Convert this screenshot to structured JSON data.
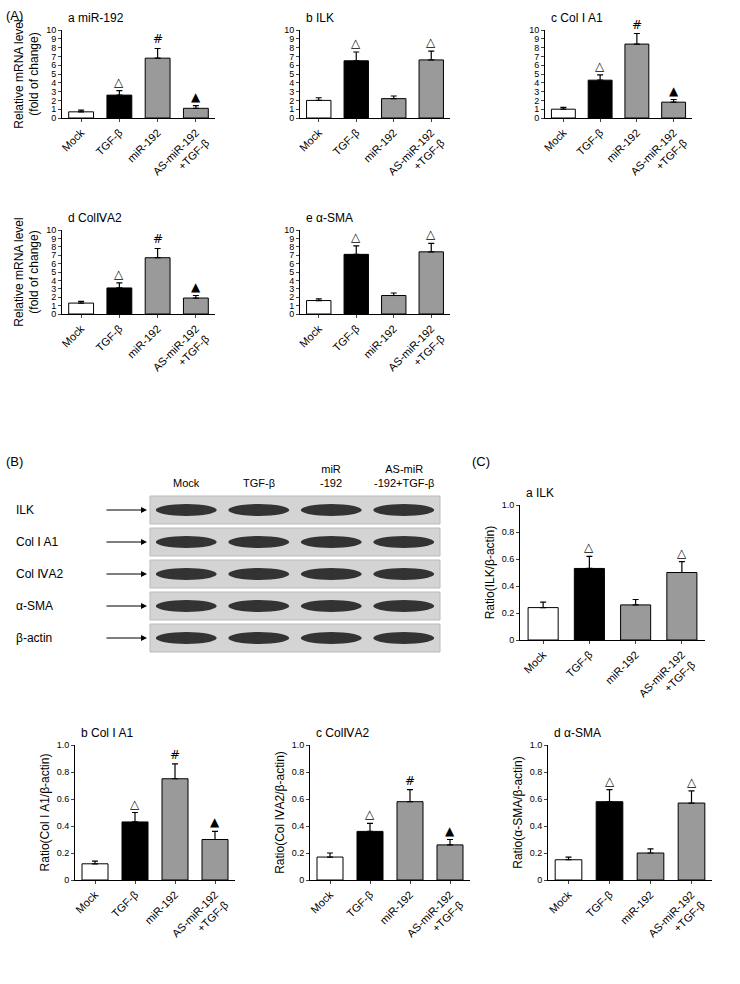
{
  "chart_data": [
    {
      "type": "bar",
      "panel": "A",
      "title": "a miR-192",
      "y_label": "Relative mRNA level\n(fold of change)",
      "categories": [
        "Mock",
        "TGF-β",
        "miR-192",
        "AS-miR-192\n+TGF-β"
      ],
      "values": [
        0.7,
        2.6,
        6.8,
        1.1
      ],
      "errors": [
        0.2,
        0.5,
        1.1,
        0.3
      ],
      "annotations": [
        null,
        "△",
        "#",
        "▲"
      ],
      "colors": [
        "#ffffff",
        "#000000",
        "#9a9a9a",
        "#9a9a9a"
      ],
      "ylim": [
        0,
        10
      ],
      "yticks": [
        0,
        1,
        2,
        3,
        4,
        5,
        6,
        7,
        8,
        9,
        10
      ],
      "grid": false
    },
    {
      "type": "bar",
      "panel": "A",
      "title": "b ILK",
      "categories": [
        "Mock",
        "TGF-β",
        "miR-192",
        "AS-miR-192\n+TGF-β"
      ],
      "values": [
        2.0,
        6.5,
        2.2,
        6.6
      ],
      "errors": [
        0.3,
        1.0,
        0.3,
        1.0
      ],
      "annotations": [
        null,
        "△",
        null,
        "△"
      ],
      "colors": [
        "#ffffff",
        "#000000",
        "#9a9a9a",
        "#9a9a9a"
      ],
      "ylim": [
        0,
        10
      ],
      "yticks": [
        0,
        1,
        2,
        3,
        4,
        5,
        6,
        7,
        8,
        9,
        10
      ],
      "grid": false
    },
    {
      "type": "bar",
      "panel": "A",
      "title": "c Col Ⅰ A1",
      "categories": [
        "Mock",
        "TGF-β",
        "miR-192",
        "AS-miR-192\n+TGF-β"
      ],
      "values": [
        1.0,
        4.3,
        8.4,
        1.8
      ],
      "errors": [
        0.2,
        0.6,
        1.2,
        0.3
      ],
      "annotations": [
        null,
        "△",
        "#",
        "▲"
      ],
      "colors": [
        "#ffffff",
        "#000000",
        "#9a9a9a",
        "#9a9a9a"
      ],
      "ylim": [
        0,
        10
      ],
      "yticks": [
        0,
        1,
        2,
        3,
        4,
        5,
        6,
        7,
        8,
        9,
        10
      ],
      "grid": false
    },
    {
      "type": "bar",
      "panel": "A",
      "title": "d ColⅣA2",
      "y_label": "Relative mRNA level\n(fold of change)",
      "categories": [
        "Mock",
        "TGF-β",
        "miR-192",
        "AS-miR-192\n+TGF-β"
      ],
      "values": [
        1.3,
        3.1,
        6.7,
        1.9
      ],
      "errors": [
        0.2,
        0.6,
        1.1,
        0.3
      ],
      "annotations": [
        null,
        "△",
        "#",
        "▲"
      ],
      "colors": [
        "#ffffff",
        "#000000",
        "#9a9a9a",
        "#9a9a9a"
      ],
      "ylim": [
        0,
        10
      ],
      "yticks": [
        0,
        1,
        2,
        3,
        4,
        5,
        6,
        7,
        8,
        9,
        10
      ],
      "grid": false
    },
    {
      "type": "bar",
      "panel": "A",
      "title": "e α-SMA",
      "categories": [
        "Mock",
        "TGF-β",
        "miR-192",
        "AS-miR-192\n+TGF-β"
      ],
      "values": [
        1.6,
        7.1,
        2.2,
        7.4
      ],
      "errors": [
        0.2,
        1.0,
        0.3,
        1.0
      ],
      "annotations": [
        null,
        "△",
        null,
        "△"
      ],
      "colors": [
        "#ffffff",
        "#000000",
        "#9a9a9a",
        "#9a9a9a"
      ],
      "ylim": [
        0,
        10
      ],
      "yticks": [
        0,
        1,
        2,
        3,
        4,
        5,
        6,
        7,
        8,
        9,
        10
      ],
      "grid": false
    },
    {
      "type": "bar",
      "panel": "C",
      "title": "a ILK",
      "y_label": "Ratio(ILK/β-actin)",
      "categories": [
        "Mock",
        "TGF-β",
        "miR-192",
        "AS-miR-192\n+TGF-β"
      ],
      "values": [
        0.24,
        0.53,
        0.26,
        0.5
      ],
      "errors": [
        0.04,
        0.09,
        0.04,
        0.08
      ],
      "annotations": [
        null,
        "△",
        null,
        "△"
      ],
      "colors": [
        "#ffffff",
        "#000000",
        "#9a9a9a",
        "#9a9a9a"
      ],
      "ylim": [
        0,
        1
      ],
      "yticks": [
        0,
        0.2,
        0.4,
        0.6,
        0.8,
        {
          "value": 1,
          "label": "1.0"
        }
      ],
      "grid": false
    },
    {
      "type": "bar",
      "panel": "C",
      "title": "b Col Ⅰ A1",
      "y_label": "Ratio(Col Ⅰ A1/β-actin)",
      "categories": [
        "Mock",
        "TGF-β",
        "miR-192",
        "AS-miR-192\n+TGF-β"
      ],
      "values": [
        0.12,
        0.43,
        0.75,
        0.3
      ],
      "errors": [
        0.02,
        0.07,
        0.11,
        0.06
      ],
      "annotations": [
        null,
        "△",
        "#",
        "▲"
      ],
      "colors": [
        "#ffffff",
        "#000000",
        "#9a9a9a",
        "#9a9a9a"
      ],
      "ylim": [
        0,
        1
      ],
      "yticks": [
        0,
        0.2,
        0.4,
        0.6,
        0.8,
        {
          "value": 1,
          "label": "1.0"
        }
      ],
      "grid": false
    },
    {
      "type": "bar",
      "panel": "C",
      "title": "c ColⅣA2",
      "y_label": "Ratio(Col ⅣA2/β-actin)",
      "categories": [
        "Mock",
        "TGF-β",
        "miR-192",
        "AS-miR-192\n+TGF-β"
      ],
      "values": [
        0.17,
        0.36,
        0.58,
        0.26
      ],
      "errors": [
        0.03,
        0.06,
        0.09,
        0.04
      ],
      "annotations": [
        null,
        "△",
        "#",
        "▲"
      ],
      "colors": [
        "#ffffff",
        "#000000",
        "#9a9a9a",
        "#9a9a9a"
      ],
      "ylim": [
        0,
        1
      ],
      "yticks": [
        0,
        0.2,
        0.4,
        0.6,
        0.8,
        {
          "value": 1,
          "label": "1.0"
        }
      ],
      "grid": false
    },
    {
      "type": "bar",
      "panel": "C",
      "title": "d α-SMA",
      "y_label": "Ratio(α-SMA/β-actin)",
      "categories": [
        "Mock",
        "TGF-β",
        "miR-192",
        "AS-miR-192\n+TGF-β"
      ],
      "values": [
        0.15,
        0.58,
        0.2,
        0.57
      ],
      "errors": [
        0.02,
        0.09,
        0.03,
        0.09
      ],
      "annotations": [
        null,
        "△",
        null,
        "△"
      ],
      "colors": [
        "#ffffff",
        "#000000",
        "#9a9a9a",
        "#9a9a9a"
      ],
      "ylim": [
        0,
        1
      ],
      "yticks": [
        0,
        0.2,
        0.4,
        0.6,
        0.8,
        {
          "value": 1,
          "label": "1.0"
        }
      ],
      "grid": false
    }
  ],
  "panel_labels": [
    "(A)",
    "(B)",
    "(C)"
  ],
  "blot": {
    "lanes": [
      "Mock",
      "TGF-β",
      "miR\n-192",
      "AS-miR\n-192+TGF-β"
    ],
    "rows": [
      "ILK",
      "Col Ⅰ A1",
      "Col ⅣA2",
      "α-SMA",
      "β-actin"
    ]
  }
}
